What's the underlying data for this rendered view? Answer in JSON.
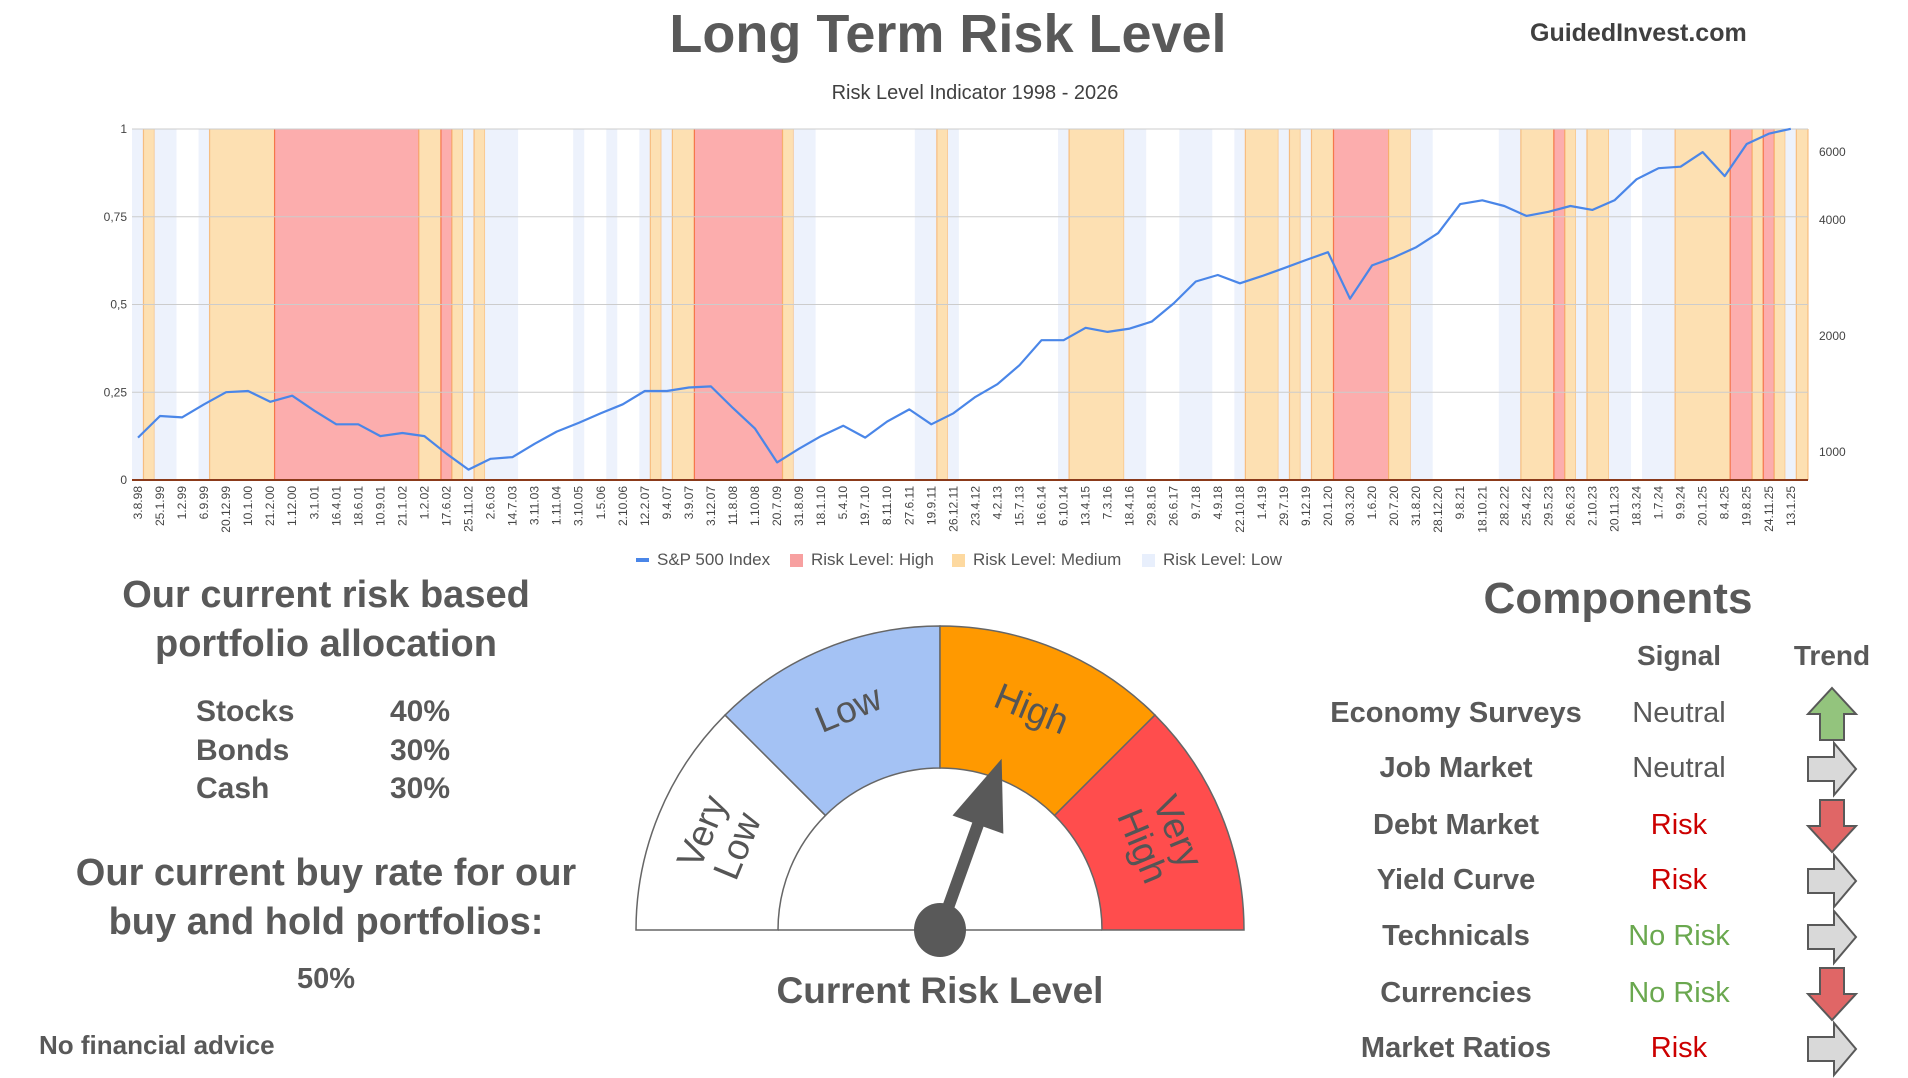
{
  "header": {
    "title": "Long Term Risk Level",
    "brand": "GuidedInvest.com",
    "subtitle": "Risk Level Indicator 1998 - 2026"
  },
  "chart_data": {
    "type": "line",
    "title": "Risk Level Indicator 1998 - 2026",
    "categories": [
      "3.8.98",
      "25.1.99",
      "1.2.99",
      "6.9.99",
      "20.12.99",
      "10.1.00",
      "21.2.00",
      "1.12.00",
      "3.1.01",
      "16.4.01",
      "18.6.01",
      "10.9.01",
      "21.1.02",
      "1.2.02",
      "17.6.02",
      "25.11.02",
      "2.6.03",
      "14.7.03",
      "3.11.03",
      "1.11.04",
      "3.10.05",
      "1.5.06",
      "2.10.06",
      "12.2.07",
      "9.4.07",
      "3.9.07",
      "3.12.07",
      "11.8.08",
      "1.10.08",
      "20.7.09",
      "31.8.09",
      "18.1.10",
      "5.4.10",
      "19.7.10",
      "8.11.10",
      "27.6.11",
      "19.9.11",
      "26.12.11",
      "23.4.12",
      "4.2.13",
      "15.7.13",
      "16.6.14",
      "6.10.14",
      "13.4.15",
      "7.3.16",
      "18.4.16",
      "29.8.16",
      "26.6.17",
      "9.7.18",
      "4.9.18",
      "22.10.18",
      "1.4.19",
      "29.7.19",
      "9.12.19",
      "20.1.20",
      "30.3.20",
      "1.6.20",
      "20.7.20",
      "31.8.20",
      "28.12.20",
      "9.8.21",
      "18.10.21",
      "28.2.22",
      "25.4.22",
      "29.5.23",
      "26.6.23",
      "2.10.23",
      "20.11.23",
      "18.3.24",
      "1.7.24",
      "9.9.24",
      "20.1.25",
      "8.4.25",
      "19.8.25",
      "24.11.25",
      "13.1.25"
    ],
    "series": [
      {
        "name": "S&P 500 Index",
        "axis": "right",
        "color": "#4a86e8",
        "values": [
          1090,
          1240,
          1230,
          1330,
          1430,
          1440,
          1350,
          1400,
          1280,
          1180,
          1180,
          1100,
          1120,
          1100,
          990,
          900,
          960,
          970,
          1050,
          1130,
          1190,
          1260,
          1330,
          1440,
          1440,
          1470,
          1480,
          1300,
          1150,
          940,
          1020,
          1100,
          1170,
          1090,
          1200,
          1290,
          1180,
          1260,
          1390,
          1500,
          1680,
          1950,
          1950,
          2100,
          2050,
          2090,
          2180,
          2430,
          2770,
          2880,
          2740,
          2860,
          3000,
          3150,
          3300,
          2500,
          3050,
          3200,
          3400,
          3700,
          4400,
          4500,
          4350,
          4100,
          4200,
          4350,
          4250,
          4500,
          5100,
          5450,
          5500,
          6000,
          5200,
          6300,
          6700,
          6900
        ]
      }
    ],
    "risk_bands": [
      {
        "level": "low",
        "from": -0.27,
        "to": 0.25
      },
      {
        "level": "medium",
        "from": 0.25,
        "to": 0.75
      },
      {
        "level": "low",
        "from": 0.75,
        "to": 1.75
      },
      {
        "level": "low",
        "from": 2.75,
        "to": 3.25
      },
      {
        "level": "medium",
        "from": 3.25,
        "to": 6.2
      },
      {
        "level": "high",
        "from": 6.2,
        "to": 12.75
      },
      {
        "level": "medium",
        "from": 12.75,
        "to": 13.75
      },
      {
        "level": "high",
        "from": 13.75,
        "to": 14.25
      },
      {
        "level": "medium",
        "from": 14.25,
        "to": 14.75
      },
      {
        "level": "low",
        "from": 14.75,
        "to": 15.25
      },
      {
        "level": "medium",
        "from": 15.25,
        "to": 15.75
      },
      {
        "level": "low",
        "from": 15.75,
        "to": 17.25
      },
      {
        "level": "low",
        "from": 19.75,
        "to": 20.25
      },
      {
        "level": "low",
        "from": 21.25,
        "to": 21.75
      },
      {
        "level": "low",
        "from": 22.75,
        "to": 23.25
      },
      {
        "level": "medium",
        "from": 23.25,
        "to": 23.75
      },
      {
        "level": "low",
        "from": 23.75,
        "to": 24.25
      },
      {
        "level": "medium",
        "from": 24.25,
        "to": 25.25
      },
      {
        "level": "high",
        "from": 25.25,
        "to": 29.25
      },
      {
        "level": "medium",
        "from": 29.25,
        "to": 29.75
      },
      {
        "level": "low",
        "from": 29.75,
        "to": 30.75
      },
      {
        "level": "low",
        "from": 35.25,
        "to": 36.25
      },
      {
        "level": "medium",
        "from": 36.25,
        "to": 36.75
      },
      {
        "level": "low",
        "from": 36.75,
        "to": 37.25
      },
      {
        "level": "low",
        "from": 41.75,
        "to": 42.25
      },
      {
        "level": "medium",
        "from": 42.25,
        "to": 44.75
      },
      {
        "level": "low",
        "from": 44.75,
        "to": 45.75
      },
      {
        "level": "low",
        "from": 47.25,
        "to": 48.75
      },
      {
        "level": "low",
        "from": 49.75,
        "to": 50.25
      },
      {
        "level": "medium",
        "from": 50.25,
        "to": 51.75
      },
      {
        "level": "low",
        "from": 51.75,
        "to": 52.25
      },
      {
        "level": "medium",
        "from": 52.25,
        "to": 52.75
      },
      {
        "level": "low",
        "from": 52.75,
        "to": 53.25
      },
      {
        "level": "medium",
        "from": 53.25,
        "to": 54.25
      },
      {
        "level": "high",
        "from": 54.25,
        "to": 56.75
      },
      {
        "level": "medium",
        "from": 56.75,
        "to": 57.75
      },
      {
        "level": "low",
        "from": 57.75,
        "to": 58.75
      },
      {
        "level": "low",
        "from": 61.75,
        "to": 62.75
      },
      {
        "level": "medium",
        "from": 62.75,
        "to": 64.25
      },
      {
        "level": "high",
        "from": 64.25,
        "to": 64.75
      },
      {
        "level": "medium",
        "from": 64.75,
        "to": 65.25
      },
      {
        "level": "low",
        "from": 65.25,
        "to": 65.75
      },
      {
        "level": "medium",
        "from": 65.75,
        "to": 66.75
      },
      {
        "level": "low",
        "from": 66.75,
        "to": 67.75
      },
      {
        "level": "low",
        "from": 68.25,
        "to": 69.75
      },
      {
        "level": "medium",
        "from": 69.75,
        "to": 72.25
      },
      {
        "level": "high",
        "from": 72.25,
        "to": 73.25
      },
      {
        "level": "medium",
        "from": 73.25,
        "to": 73.75
      },
      {
        "level": "high",
        "from": 73.75,
        "to": 74.25
      },
      {
        "level": "medium",
        "from": 74.25,
        "to": 74.75
      },
      {
        "level": "low",
        "from": 74.75,
        "to": 75.25
      },
      {
        "level": "medium",
        "from": 75.25,
        "to": 75.78
      }
    ],
    "x_range": [
      -0.27,
      75.78
    ],
    "left_axis": {
      "range": [
        0,
        1
      ],
      "ticks": [
        {
          "v": 1,
          "label": "1"
        },
        {
          "v": 0.75,
          "label": "0,75"
        },
        {
          "v": 0.5,
          "label": "0,5"
        },
        {
          "v": 0.25,
          "label": "0,25"
        },
        {
          "v": 0,
          "label": "0"
        }
      ]
    },
    "right_axis": {
      "scale": "log",
      "range": [
        846,
        6890
      ],
      "ticks": [
        {
          "v": 6000,
          "label": "6000"
        },
        {
          "v": 4000,
          "label": "4000"
        },
        {
          "v": 2000,
          "label": "2000"
        },
        {
          "v": 1000,
          "label": "1000"
        }
      ]
    },
    "grid": true,
    "legend_position": "bottom",
    "legend": [
      {
        "label": "S&P 500 Index",
        "color": "#4a86e8"
      },
      {
        "label": "Risk Level: High",
        "color": "#f7a0a0"
      },
      {
        "label": "Risk Level: Medium",
        "color": "#fdd9a0"
      },
      {
        "label": "Risk Level: Low",
        "color": "#e8effc"
      }
    ],
    "colors": {
      "high": "#fcadad",
      "high_edge": "#f4683a",
      "medium": "#fde0b2",
      "medium_edge": "#f6b26b",
      "low": "#edf2fc"
    }
  },
  "allocation": {
    "title_line1": "Our current risk based",
    "title_line2": "portfolio allocation",
    "rows": [
      {
        "label": "Stocks",
        "value": "40%"
      },
      {
        "label": "Bonds",
        "value": "30%"
      },
      {
        "label": "Cash",
        "value": "30%"
      }
    ]
  },
  "buy_rate": {
    "title_line1": "Our current buy rate for our",
    "title_line2": "buy and hold portfolios:",
    "value": "50%"
  },
  "disclaimer": "No financial advice",
  "gauge": {
    "segments": [
      {
        "label_line1": "Very",
        "label_line2": "Low",
        "color": "#ffffff"
      },
      {
        "label_line1": "Low",
        "label_line2": "",
        "color": "#a4c2f4"
      },
      {
        "label_line1": "High",
        "label_line2": "",
        "color": "#ff9900"
      },
      {
        "label_line1": "Very",
        "label_line2": "High",
        "color": "#ff4d4d"
      }
    ],
    "current_level": "High",
    "needle_fraction": 0.61,
    "caption": "Current Risk Level"
  },
  "components": {
    "title": "Components",
    "signal_header": "Signal",
    "trend_header": "Trend",
    "rows": [
      {
        "name": "Economy Surveys",
        "signal": "Neutral",
        "signal_color": "#595959",
        "trend": "up"
      },
      {
        "name": "Job Market",
        "signal": "Neutral",
        "signal_color": "#595959",
        "trend": "right"
      },
      {
        "name": "Debt Market",
        "signal": "Risk",
        "signal_color": "#cc0000",
        "trend": "down"
      },
      {
        "name": "Yield Curve",
        "signal": "Risk",
        "signal_color": "#cc0000",
        "trend": "right"
      },
      {
        "name": "Technicals",
        "signal": "No Risk",
        "signal_color": "#6aa84f",
        "trend": "right"
      },
      {
        "name": "Currencies",
        "signal": "No Risk",
        "signal_color": "#6aa84f",
        "trend": "down"
      },
      {
        "name": "Market Ratios",
        "signal": "Risk",
        "signal_color": "#cc0000",
        "trend": "right"
      }
    ],
    "trend_colors": {
      "up": "#93c47d",
      "down": "#e06666",
      "right": "#d9d9d9"
    }
  }
}
